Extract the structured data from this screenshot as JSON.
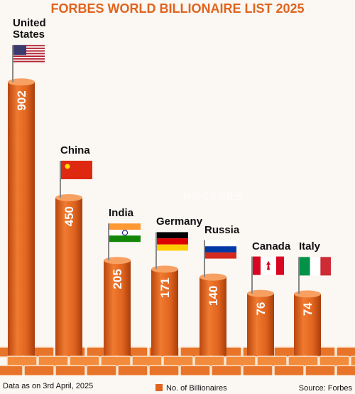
{
  "chart_data": {
    "type": "bar",
    "title": "FORBES WORLD BILLIONAIRE LIST 2025",
    "categories": [
      "United States",
      "China",
      "India",
      "Germany",
      "Russia",
      "Canada",
      "Italy"
    ],
    "series": [
      {
        "name": "No. of Billionaires",
        "color": "#e0641e",
        "values": [
          902,
          450,
          205,
          171,
          140,
          76,
          74
        ]
      }
    ],
    "footnote": "Data as on 3rd April, 2025",
    "source": "Source: Forbes",
    "watermark": "@财经家哥掘金"
  }
}
